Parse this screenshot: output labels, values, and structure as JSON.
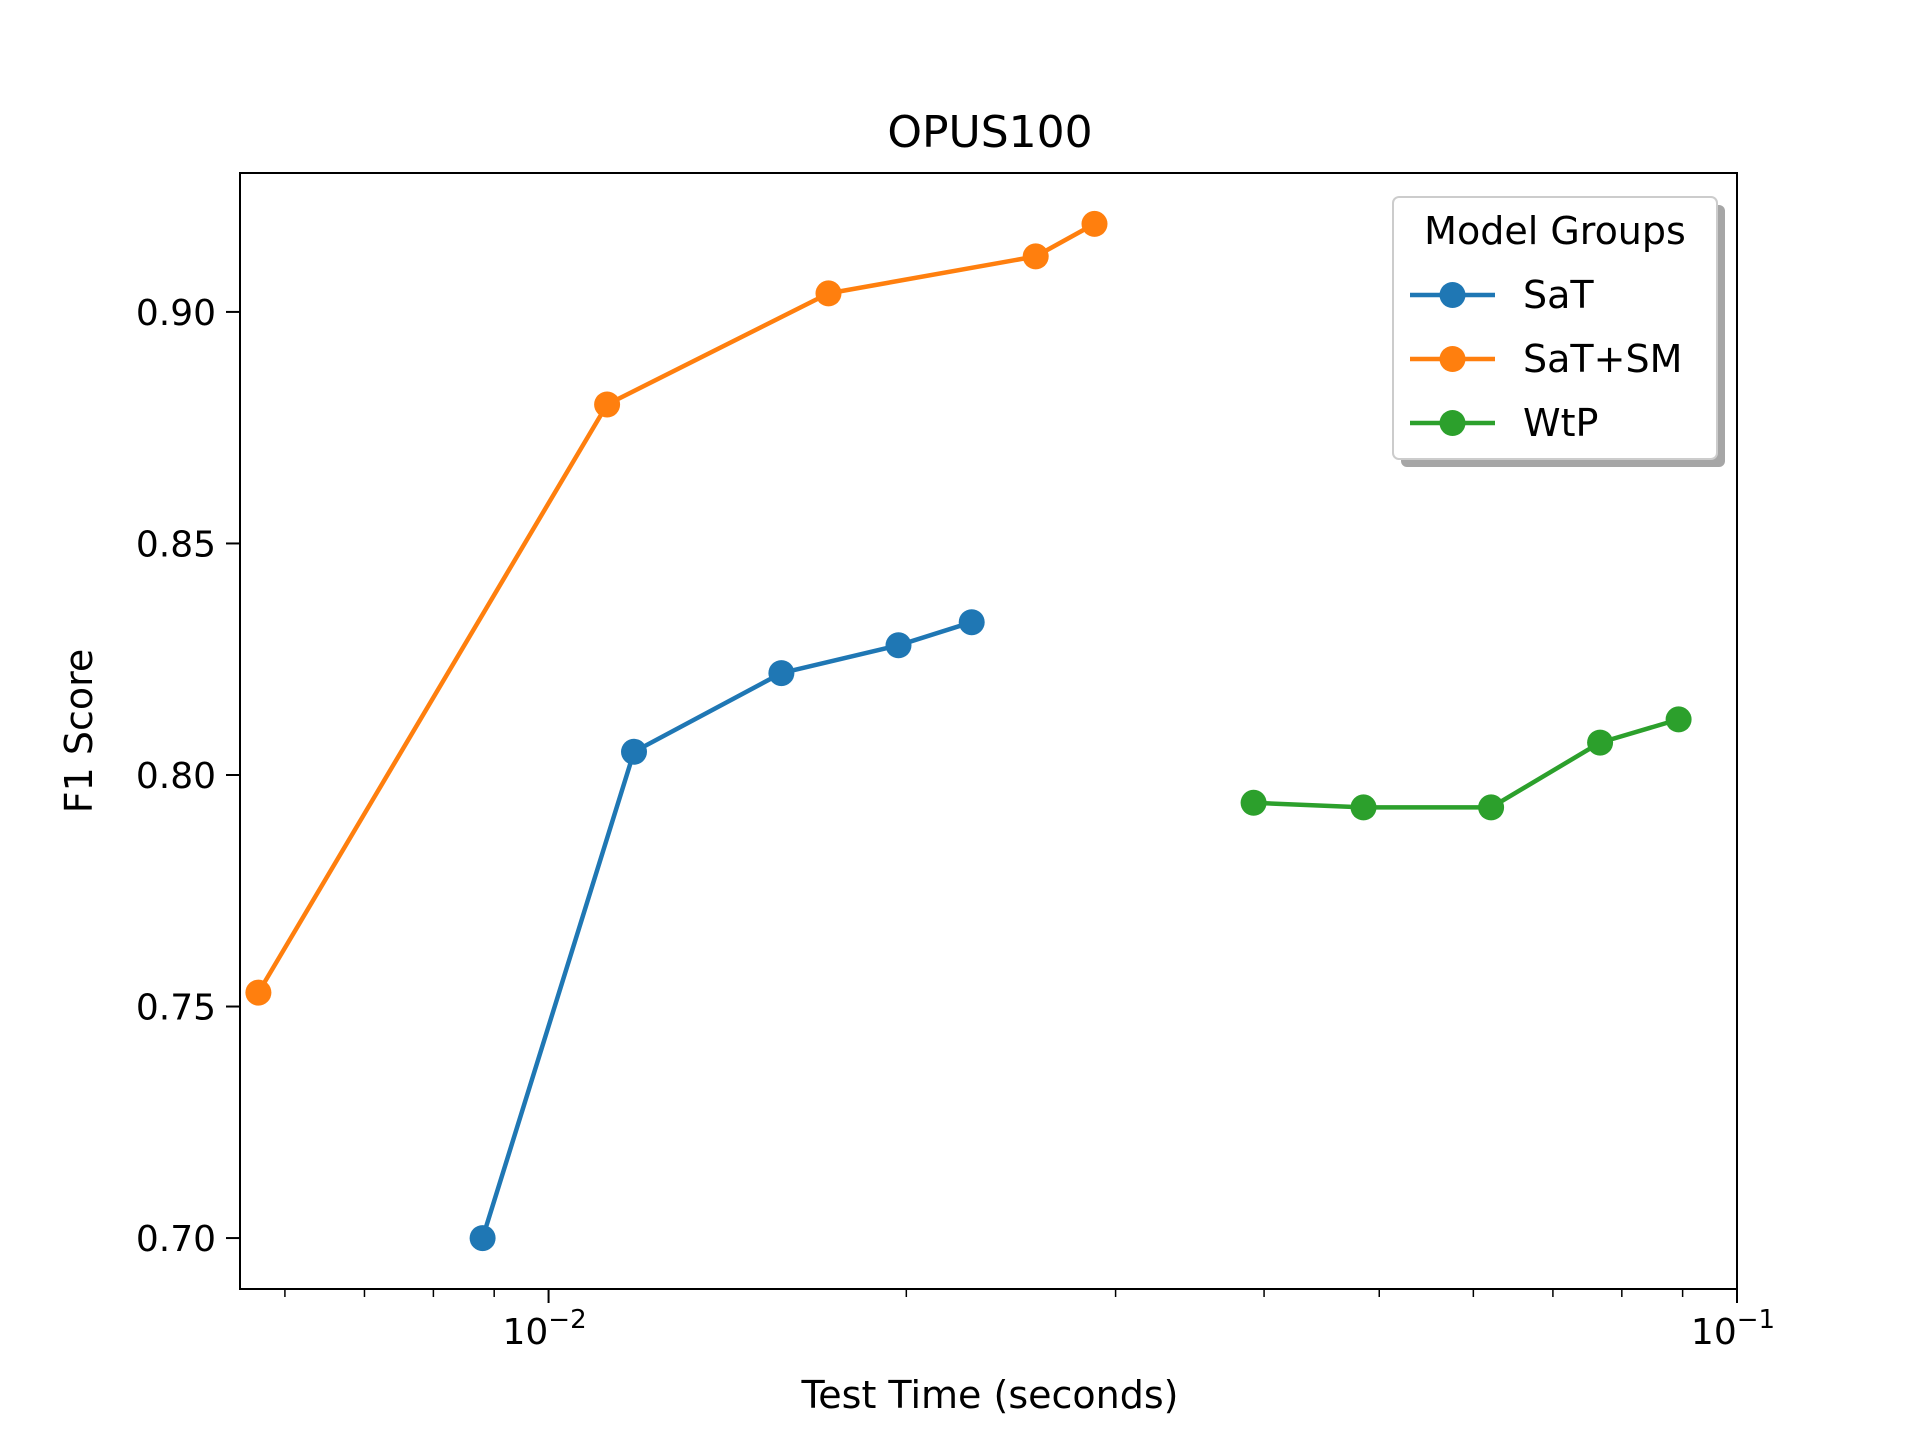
{
  "chart_data": {
    "type": "line",
    "title": "OPUS100",
    "xlabel": "Test Time (seconds)",
    "ylabel": "F1 Score",
    "x_scale": "log",
    "xlim": [
      0.0055,
      0.1
    ],
    "ylim": [
      0.689,
      0.93
    ],
    "x_ticks": [
      {
        "value": 0.01,
        "base": "10",
        "exp": "−2"
      },
      {
        "value": 0.1,
        "base": "10",
        "exp": "−1"
      }
    ],
    "y_ticks": [
      {
        "value": 0.7,
        "label": "0.70"
      },
      {
        "value": 0.75,
        "label": "0.75"
      },
      {
        "value": 0.8,
        "label": "0.80"
      },
      {
        "value": 0.85,
        "label": "0.85"
      },
      {
        "value": 0.9,
        "label": "0.90"
      }
    ],
    "grid": false,
    "legend": {
      "title": "Model Groups",
      "placement": "top-right"
    },
    "series": [
      {
        "name": "SaT",
        "color": "#1f77b4",
        "x": [
          0.0088,
          0.0118,
          0.0157,
          0.0197,
          0.0227
        ],
        "y": [
          0.7,
          0.805,
          0.822,
          0.828,
          0.833
        ]
      },
      {
        "name": "SaT+SM",
        "color": "#ff7f0e",
        "x": [
          0.0057,
          0.0112,
          0.0172,
          0.0257,
          0.0288
        ],
        "y": [
          0.753,
          0.88,
          0.904,
          0.912,
          0.919
        ]
      },
      {
        "name": "WtP",
        "color": "#2ca02c",
        "x": [
          0.0392,
          0.0485,
          0.0621,
          0.0767,
          0.0893
        ],
        "y": [
          0.794,
          0.793,
          0.793,
          0.807,
          0.812
        ]
      }
    ]
  }
}
